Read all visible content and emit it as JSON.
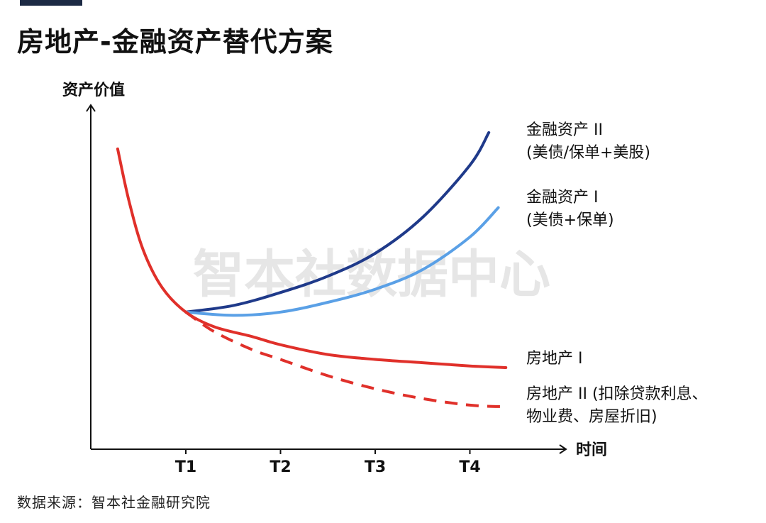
{
  "title": "房地产-金融资产替代方案",
  "source": "数据来源：智本社金融研究院",
  "watermark": "智本社数据中心",
  "chart_data": {
    "type": "line",
    "ylabel": "资产价值",
    "xlabel": "时间",
    "x_ticks": [
      "T1",
      "T2",
      "T3",
      "T4"
    ],
    "x_range": [
      -1,
      4.4
    ],
    "y_range": [
      0,
      10
    ],
    "grid": false,
    "legend": "inline-right",
    "series": [
      {
        "label_lines": [
          "金融资产 II",
          "(美债/保单+美股)"
        ],
        "color": "#1f3a8a",
        "style": "solid",
        "points": [
          [
            1,
            4.2
          ],
          [
            1.5,
            4.4
          ],
          [
            2,
            4.8
          ],
          [
            2.5,
            5.3
          ],
          [
            3,
            6.0
          ],
          [
            3.5,
            7.1
          ],
          [
            4,
            8.7
          ],
          [
            4.2,
            9.7
          ]
        ]
      },
      {
        "label_lines": [
          "金融资产 I",
          "(美债+保单)"
        ],
        "color": "#5aa0e6",
        "style": "solid",
        "points": [
          [
            1,
            4.2
          ],
          [
            1.5,
            4.1
          ],
          [
            2,
            4.2
          ],
          [
            2.5,
            4.5
          ],
          [
            3,
            4.9
          ],
          [
            3.5,
            5.5
          ],
          [
            4,
            6.5
          ],
          [
            4.3,
            7.4
          ]
        ]
      },
      {
        "label_lines": [
          "房地产 I"
        ],
        "color": "#e0302a",
        "style": "solid",
        "points": [
          [
            0.28,
            9.2
          ],
          [
            0.4,
            7.6
          ],
          [
            0.55,
            6.1
          ],
          [
            0.75,
            4.95
          ],
          [
            1,
            4.2
          ],
          [
            1.3,
            3.75
          ],
          [
            1.7,
            3.45
          ],
          [
            2,
            3.2
          ],
          [
            2.5,
            2.9
          ],
          [
            3,
            2.75
          ],
          [
            3.5,
            2.65
          ],
          [
            4,
            2.55
          ],
          [
            4.38,
            2.5
          ]
        ]
      },
      {
        "label_lines": [
          "房地产 II (扣除贷款利息、",
          "物业费、房屋折旧)"
        ],
        "color": "#e0302a",
        "style": "dashed",
        "points": [
          [
            1,
            4.2
          ],
          [
            1.3,
            3.6
          ],
          [
            1.7,
            3.05
          ],
          [
            2,
            2.75
          ],
          [
            2.5,
            2.25
          ],
          [
            3,
            1.85
          ],
          [
            3.5,
            1.55
          ],
          [
            4,
            1.35
          ],
          [
            4.38,
            1.3
          ]
        ]
      }
    ]
  }
}
